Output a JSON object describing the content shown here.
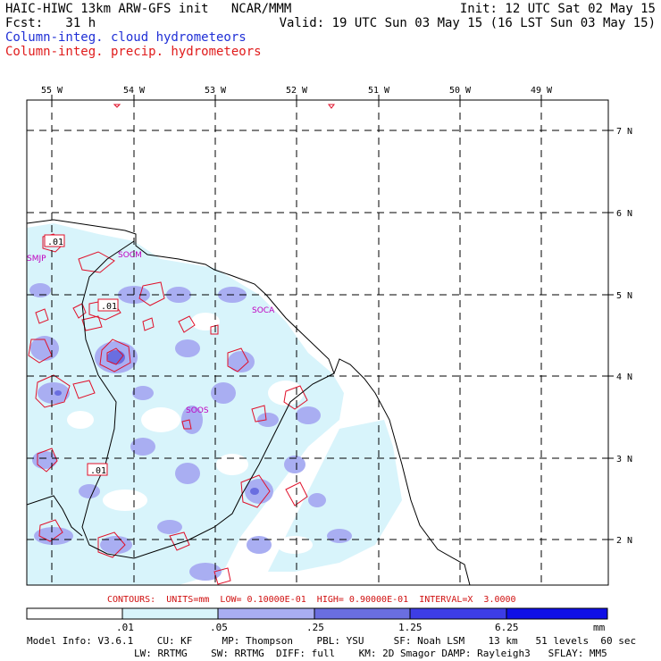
{
  "header": {
    "line1_left": "HAIC-HIWC 13km ARW-GFS init   NCAR/MMM",
    "line2_left": "Fcst:   31 h",
    "line1_right": "Init: 12 UTC Sat 02 May 15",
    "line2_right": "Valid: 19 UTC Sun 03 May 15 (16 LST Sun 03 May 15)",
    "legend_cloud": "Column-integ. cloud hydrometeors",
    "legend_precip": "Column-integ. precip. hydrometeors"
  },
  "map": {
    "lon_labels": [
      "55 W",
      "54 W",
      "53 W",
      "52 W",
      "51 W",
      "50 W",
      "49 W"
    ],
    "lat_labels": [
      "7 N",
      "6 N",
      "5 N",
      "4 N",
      "3 N",
      "2 N"
    ],
    "stations": [
      "SMJP",
      "SOCM",
      "SOCA",
      "SOOS"
    ],
    "contour_labels": [
      ".01",
      ".01",
      ".01"
    ],
    "colors": {
      "light": "#d8f4fb",
      "medium": "#a9aef2",
      "dark": "#6a6ee0",
      "darkest": "#1515e0",
      "precip": "#e0102a",
      "station": "#c000c0"
    }
  },
  "contours_info": "CONTOURS:  UNITS=mm  LOW= 0.10000E-01  HIGH= 0.90000E-01  INTERVAL=X  3.0000",
  "colorbar": {
    "ticks": [
      ".01",
      ".05",
      ".25",
      "1.25",
      "6.25"
    ],
    "unit": "mm",
    "colors": [
      "#ffffff",
      "#d8f4fb",
      "#a9aef2",
      "#6a6ee0",
      "#3d3de6",
      "#1010e6"
    ]
  },
  "model_info": {
    "line1": "Model Info: V3.6.1    CU: KF     MP: Thompson    PBL: YSU     SF: Noah LSM    13 km   51 levels  60 sec",
    "line2": "LW: RRTMG    SW: RRTMG  DIFF: full    KM: 2D Smagor DAMP: Rayleigh3   SFLAY: MM5"
  }
}
